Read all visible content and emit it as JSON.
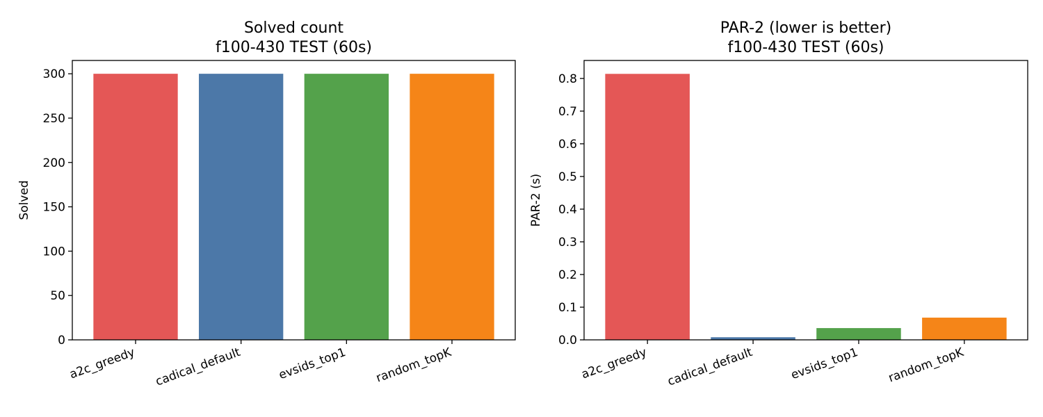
{
  "chart_data": [
    {
      "type": "bar",
      "title": "Solved count\nf100-430 TEST (60s)",
      "xlabel": "",
      "ylabel": "Solved",
      "categories": [
        "a2c_greedy",
        "cadical_default",
        "evsids_top1",
        "random_topK"
      ],
      "values": [
        300,
        300,
        300,
        300
      ],
      "colors": [
        "#e45756",
        "#4c78a8",
        "#54a24b",
        "#f58518"
      ],
      "ylim": [
        0,
        315
      ],
      "yticks": [
        0,
        50,
        100,
        150,
        200,
        250,
        300
      ],
      "ytick_labels": [
        "0",
        "50",
        "100",
        "150",
        "200",
        "250",
        "300"
      ],
      "grid": false
    },
    {
      "type": "bar",
      "title": "PAR-2 (lower is better)\nf100-430 TEST (60s)",
      "xlabel": "",
      "ylabel": "PAR-2 (s)",
      "categories": [
        "a2c_greedy",
        "cadical_default",
        "evsids_top1",
        "random_topK"
      ],
      "values": [
        0.814,
        0.008,
        0.036,
        0.068
      ],
      "colors": [
        "#e45756",
        "#4c78a8",
        "#54a24b",
        "#f58518"
      ],
      "ylim": [
        0,
        0.855
      ],
      "yticks": [
        0,
        0.1,
        0.2,
        0.3,
        0.4,
        0.5,
        0.6,
        0.7,
        0.8
      ],
      "ytick_labels": [
        "0.0",
        "0.1",
        "0.2",
        "0.3",
        "0.4",
        "0.5",
        "0.6",
        "0.7",
        "0.8"
      ],
      "grid": false
    }
  ]
}
